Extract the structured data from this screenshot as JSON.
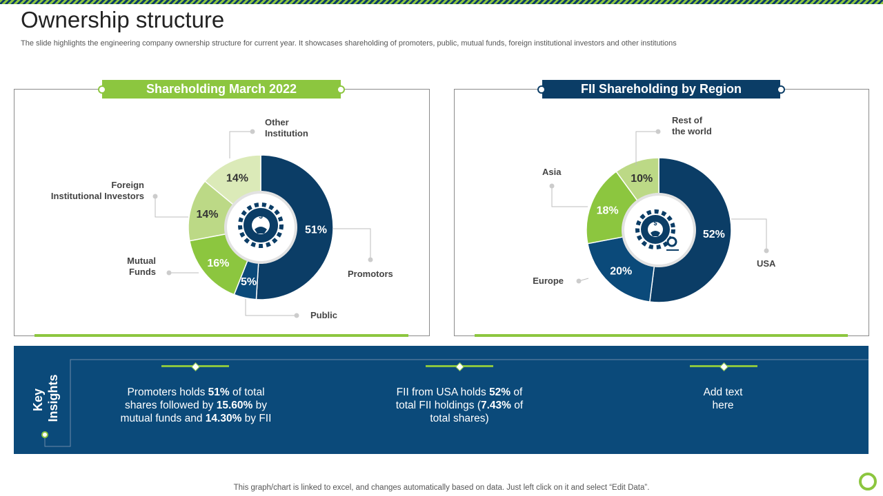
{
  "page": {
    "title": "Ownership structure",
    "subtitle": "The slide highlights the engineering company ownership structure for current year.  It showcases shareholding of promoters, public, mutual funds, foreign institutional investors and other institutions",
    "footer": "This graph/chart is linked to excel,  and changes automatically based on data. Just left click on it and select “Edit Data”."
  },
  "colors": {
    "navy": "#0b3d66",
    "blue": "#0b4a7a",
    "green": "#8cc63f",
    "light_green": "#bcd986",
    "pale_green": "#dbeab8"
  },
  "icons": {
    "center_left": "gear-money-hand-icon",
    "center_right": "gear-money-location-icon"
  },
  "chart_data": [
    {
      "type": "pie",
      "donut": true,
      "title": "Shareholding March 2022",
      "categories": [
        "Promotors",
        "Public",
        "Mutual Funds",
        "Foreign Institutional Investors",
        "Other Institution"
      ],
      "callout_labels": [
        [
          "Promotors"
        ],
        [
          "Public"
        ],
        [
          "Mutual",
          "Funds"
        ],
        [
          "Foreign",
          "Institutional Investors"
        ],
        [
          "Other",
          "Institution"
        ]
      ],
      "values": [
        51,
        5,
        16,
        14,
        14
      ],
      "value_labels": [
        "51%",
        "5%",
        "16%",
        "14%",
        "14%"
      ],
      "colors": [
        "#0b3d66",
        "#0b4a7a",
        "#8cc63f",
        "#bcd986",
        "#dbeab8"
      ]
    },
    {
      "type": "pie",
      "donut": true,
      "title": "FII Shareholding by Region",
      "categories": [
        "USA",
        "Europe",
        "Asia",
        "Rest of the world"
      ],
      "callout_labels": [
        [
          "USA"
        ],
        [
          "Europe"
        ],
        [
          "Asia"
        ],
        [
          "Rest of",
          "the world"
        ]
      ],
      "values": [
        52,
        20,
        18,
        10
      ],
      "value_labels": [
        "52%",
        "20%",
        "18%",
        "10%"
      ],
      "colors": [
        "#0b3d66",
        "#0b4a7a",
        "#8cc63f",
        "#bcd986"
      ]
    }
  ],
  "insights": {
    "heading_line1": "Key",
    "heading_line2": "Insights",
    "items": [
      {
        "parts": [
          {
            "t": "Promoters holds ",
            "b": false
          },
          {
            "t": "51%",
            "b": true
          },
          {
            "t": " of total shares followed by ",
            "b": false
          },
          {
            "t": "15.60%",
            "b": true
          },
          {
            "t": " by mutual funds and ",
            "b": false
          },
          {
            "t": "14.30%",
            "b": true
          },
          {
            "t": " by FII",
            "b": false
          }
        ]
      },
      {
        "parts": [
          {
            "t": "FII from USA holds ",
            "b": false
          },
          {
            "t": "52%",
            "b": true
          },
          {
            "t": " of total FII  holdings (",
            "b": false
          },
          {
            "t": "7.43%",
            "b": true
          },
          {
            "t": " of total shares)",
            "b": false
          }
        ]
      },
      {
        "parts": [
          {
            "t": "Add text here",
            "b": false
          }
        ]
      }
    ]
  }
}
